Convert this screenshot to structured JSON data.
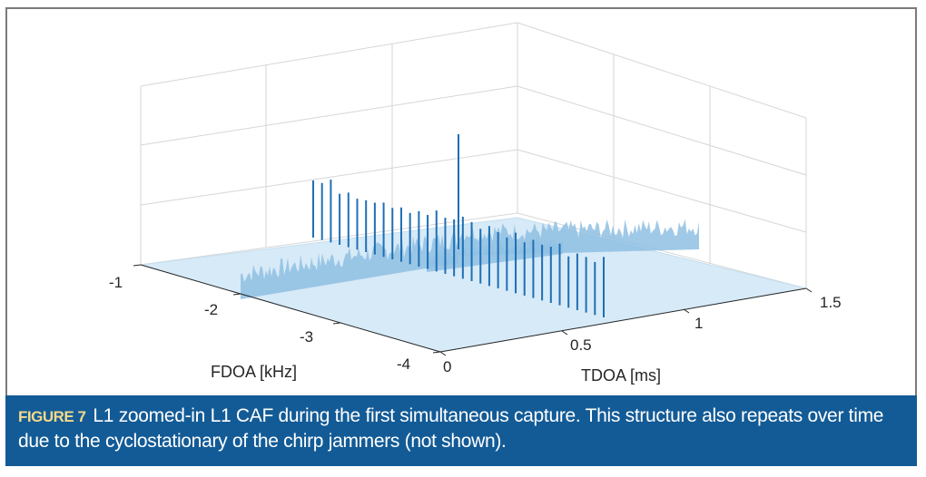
{
  "chart_data": {
    "type": "surface",
    "title": "",
    "xlabel": "TDOA [ms]",
    "ylabel": "FDOA [kHz]",
    "x_ticks": [
      "0",
      "0.5",
      "1",
      "1.5"
    ],
    "y_ticks": [
      "-1",
      "-2",
      "-3",
      "-4"
    ],
    "xlim": [
      0,
      1.5
    ],
    "ylim": [
      -4,
      -1
    ],
    "grid": true,
    "colors": {
      "surface_low": "#cfe6f5",
      "surface_mid": "#8fc0e3",
      "spike": "#1f6fb5",
      "grid": "#d9d9d9",
      "axis": "#262626"
    }
  },
  "caption": {
    "figure_label": "FIGURE 7",
    "text": "L1 zoomed-in L1 CAF during the first simultaneous capture. This structure also repeats over time due to the cyclostationary of the chirp jammers (not shown)."
  }
}
